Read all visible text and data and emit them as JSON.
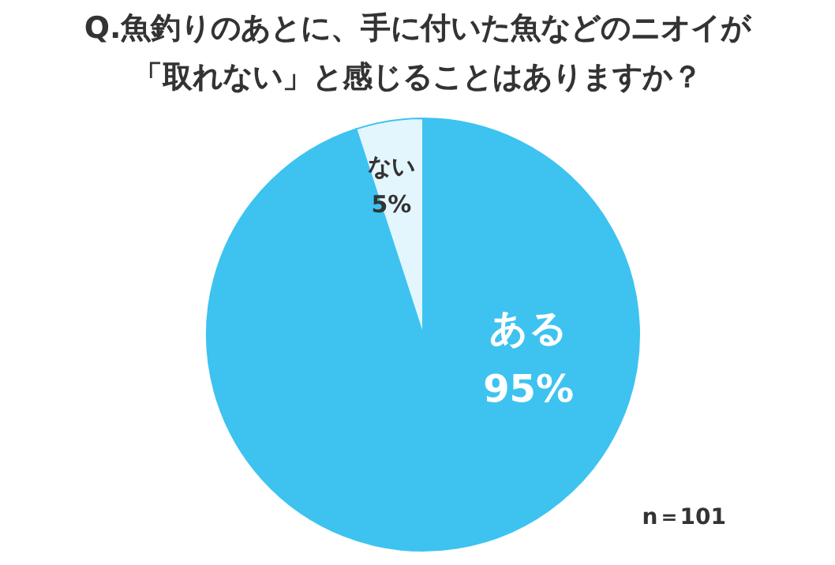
{
  "chart_data": {
    "type": "pie",
    "title": "Q.魚釣りのあとに、手に付いた魚などのニオイが「取れない」と感じることはありますか？",
    "categories": [
      "ある",
      "ない"
    ],
    "values": [
      95,
      5
    ],
    "colors": [
      "#3ec3f0",
      "#e3f6fd"
    ],
    "value_labels": [
      "95%",
      "5%"
    ],
    "annotations": [
      "n＝101"
    ]
  }
}
